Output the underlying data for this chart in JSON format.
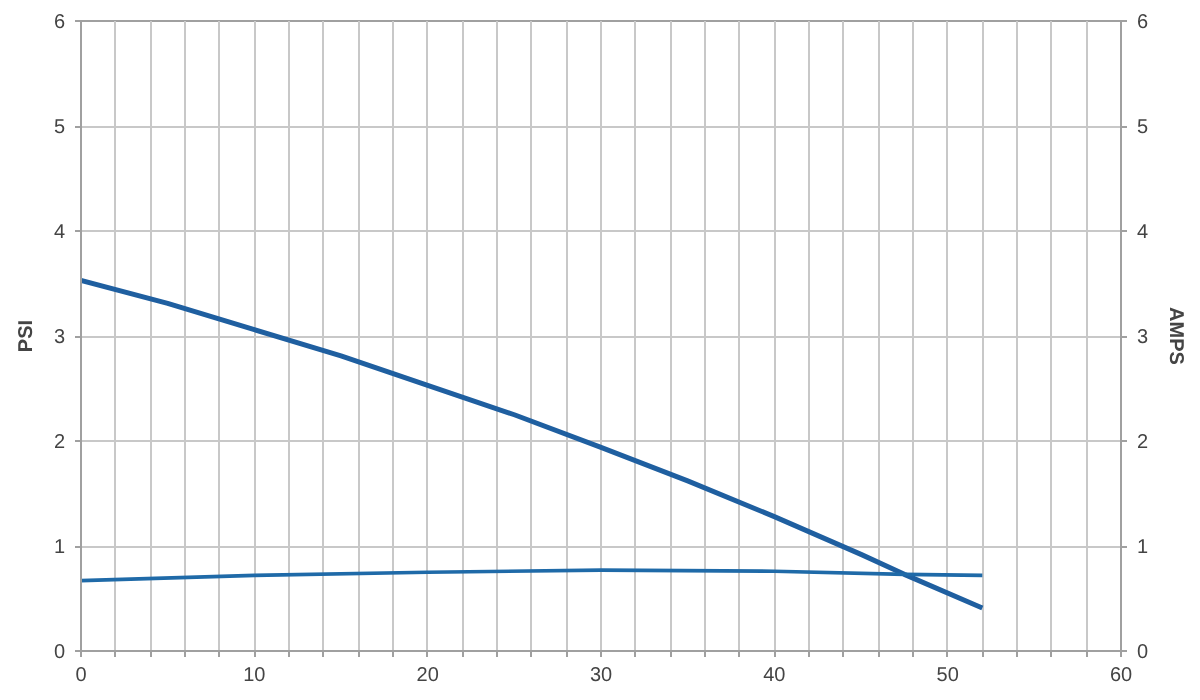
{
  "chart_data": {
    "type": "line",
    "ylabel": "PSI",
    "y2label": "AMPS",
    "xlim": [
      0,
      60
    ],
    "xticks": [
      0,
      {
        "value": 2,
        "label": null
      },
      {
        "value": 4,
        "label": null
      },
      {
        "value": 6,
        "label": null
      },
      {
        "value": 8,
        "label": null
      },
      10,
      {
        "value": 12,
        "label": null
      },
      {
        "value": 14,
        "label": null
      },
      {
        "value": 16,
        "label": null
      },
      {
        "value": 18,
        "label": null
      },
      20,
      {
        "value": 22,
        "label": null
      },
      {
        "value": 24,
        "label": null
      },
      {
        "value": 26,
        "label": null
      },
      {
        "value": 28,
        "label": null
      },
      30,
      {
        "value": 32,
        "label": null
      },
      {
        "value": 34,
        "label": null
      },
      {
        "value": 36,
        "label": null
      },
      {
        "value": 38,
        "label": null
      },
      40,
      {
        "value": 42,
        "label": null
      },
      {
        "value": 44,
        "label": null
      },
      {
        "value": 46,
        "label": null
      },
      {
        "value": 48,
        "label": null
      },
      50,
      {
        "value": 52,
        "label": null
      },
      {
        "value": 54,
        "label": null
      },
      {
        "value": 56,
        "label": null
      },
      {
        "value": 58,
        "label": null
      },
      60
    ],
    "ylim": [
      0,
      6
    ],
    "yticks": [
      0,
      1,
      2,
      3,
      4,
      5,
      6
    ],
    "y2lim": [
      0,
      6
    ],
    "y2ticks": [
      0,
      1,
      2,
      3,
      4,
      5,
      6
    ],
    "grid": true,
    "marker": "none",
    "line_style": "solid",
    "series": [
      {
        "color": "#1f5fa0",
        "x": [
          0,
          5,
          10,
          15,
          20,
          25,
          30,
          35,
          40,
          45,
          47.5,
          52
        ],
        "values": [
          3.53,
          3.31,
          3.06,
          2.81,
          2.53,
          2.25,
          1.94,
          1.62,
          1.28,
          0.92,
          0.73,
          0.41
        ]
      },
      {
        "color": "#1f6aa8",
        "axis": "y2",
        "x": [
          0,
          10,
          20,
          30,
          40,
          47.5,
          52
        ],
        "values": [
          0.67,
          0.72,
          0.75,
          0.77,
          0.76,
          0.73,
          0.72
        ]
      }
    ]
  }
}
